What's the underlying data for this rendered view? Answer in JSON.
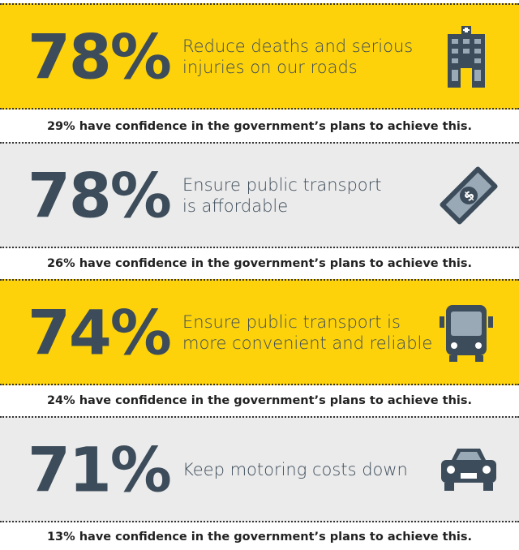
{
  "items": [
    {
      "percent": "78%",
      "description": [
        "Reduce deaths and serious",
        "injuries on our roads"
      ],
      "confidence": "29% have confidence in the government’s plans to achieve this."
    },
    {
      "percent": "78%",
      "description": [
        "Ensure public transport",
        "is affordable"
      ],
      "confidence": "26% have confidence in the government’s plans to achieve this."
    },
    {
      "percent": "74%",
      "description": [
        "Ensure public transport is",
        "more convenient and reliable"
      ],
      "confidence": "24% have confidence in the government’s plans to achieve this."
    },
    {
      "percent": "71%",
      "description": [
        "Keep motoring costs down"
      ],
      "confidence": "13% have confidence in the government’s plans to achieve this."
    }
  ]
}
